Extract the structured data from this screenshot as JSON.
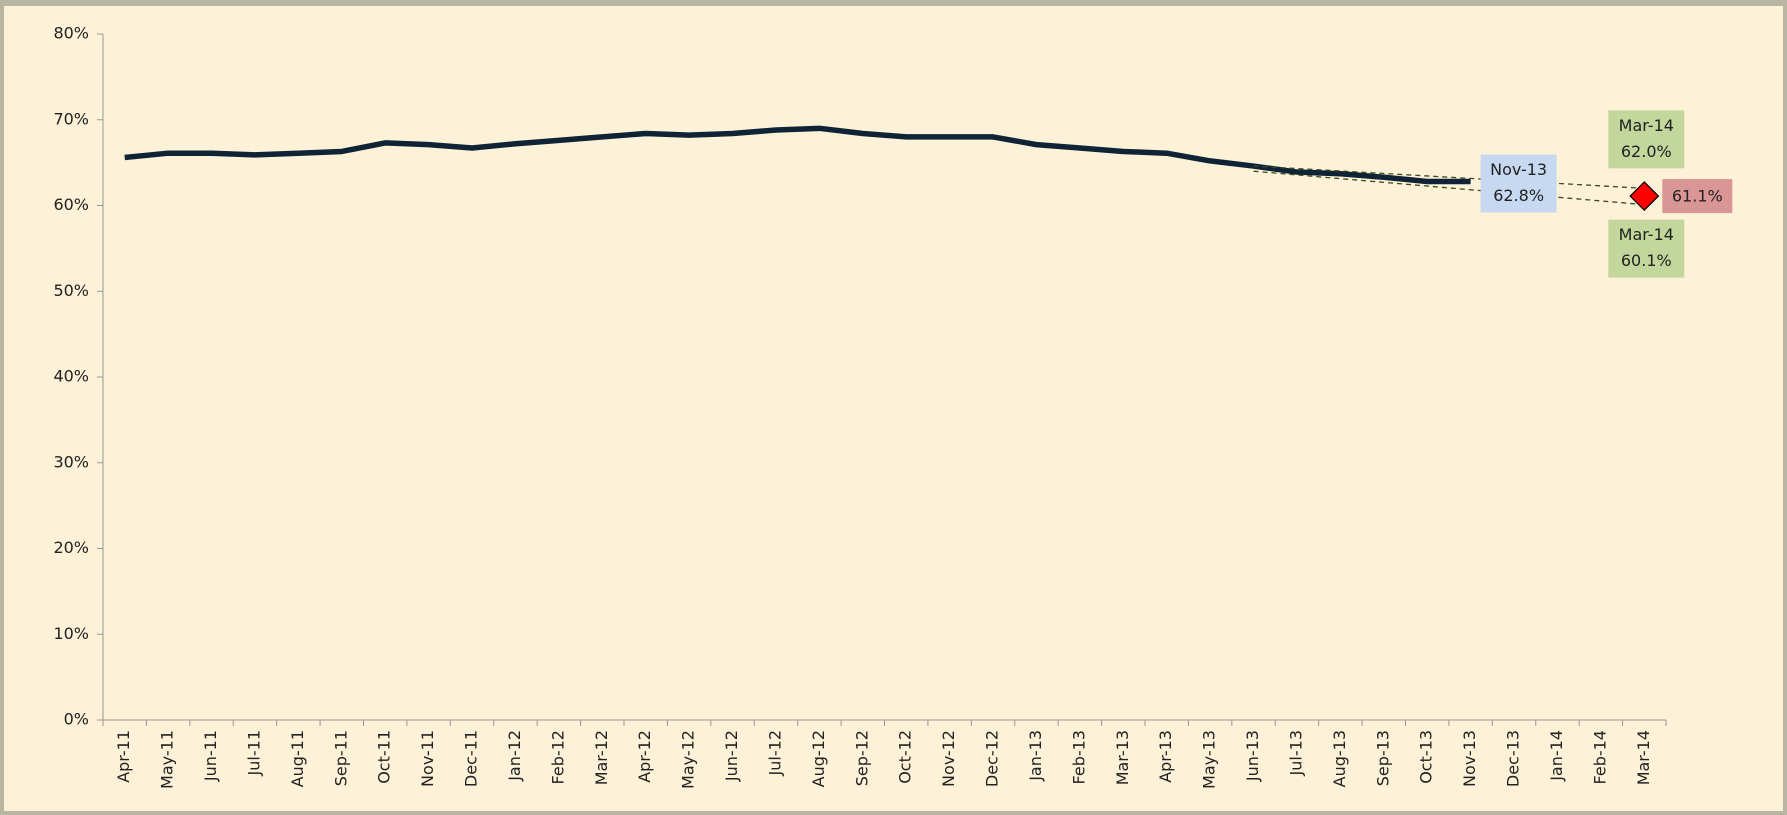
{
  "chart_data": {
    "type": "line",
    "categories": [
      "Apr-11",
      "May-11",
      "Jun-11",
      "Jul-11",
      "Aug-11",
      "Sep-11",
      "Oct-11",
      "Nov-11",
      "Dec-11",
      "Jan-12",
      "Feb-12",
      "Mar-12",
      "Apr-12",
      "May-12",
      "Jun-12",
      "Jul-12",
      "Aug-12",
      "Sep-12",
      "Oct-12",
      "Nov-12",
      "Dec-12",
      "Jan-13",
      "Feb-13",
      "Mar-13",
      "Apr-13",
      "May-13",
      "Jun-13",
      "Jul-13",
      "Aug-13",
      "Sep-13",
      "Oct-13",
      "Nov-13",
      "Dec-13",
      "Jan-14",
      "Feb-14",
      "Mar-14"
    ],
    "series": [
      {
        "color": "#0f2336",
        "values": [
          65.6,
          66.1,
          66.1,
          65.9,
          66.1,
          66.3,
          67.3,
          67.1,
          66.7,
          67.2,
          67.6,
          68.0,
          68.4,
          68.2,
          68.4,
          68.8,
          69.0,
          68.4,
          68.0,
          68.0,
          68.0,
          67.1,
          66.7,
          66.3,
          66.1,
          65.2,
          64.6,
          63.9,
          63.7,
          63.3,
          62.8,
          62.8,
          null,
          null,
          null,
          null
        ]
      }
    ],
    "trend_lines": [
      {
        "x": [
          "Jun-13",
          "Mar-14"
        ],
        "values": [
          64.6,
          62.0
        ],
        "color": "#3a4a1a"
      },
      {
        "x": [
          "Jun-13",
          "Mar-14"
        ],
        "values": [
          64.0,
          60.1
        ],
        "color": "#3a4a1a"
      }
    ],
    "callouts": [
      {
        "label": "Nov-13",
        "value": 62.8,
        "value_label": "62.8%",
        "color": "#c6d9f1",
        "placement": "right"
      },
      {
        "label": "Mar-14",
        "value": 62.0,
        "value_label": "62.0%",
        "color": "#c3d69b",
        "placement": "above"
      },
      {
        "label": "Mar-14",
        "value": 60.1,
        "value_label": "60.1%",
        "color": "#c3d69b",
        "placement": "below"
      }
    ],
    "marker": {
      "x": "Mar-14",
      "value": 61.1,
      "value_label": "61.1%",
      "color": "#ff0000",
      "label_color": "#d99694"
    },
    "ylim": [
      0,
      80
    ],
    "yticks": [
      {
        "value": 0,
        "label": "0%"
      },
      {
        "value": 10,
        "label": "10%"
      },
      {
        "value": 20,
        "label": "20%"
      },
      {
        "value": 30,
        "label": "30%"
      },
      {
        "value": 40,
        "label": "40%"
      },
      {
        "value": 50,
        "label": "50%"
      },
      {
        "value": 60,
        "label": "60%"
      },
      {
        "value": 70,
        "label": "70%"
      },
      {
        "value": 80,
        "label": "80%"
      }
    ]
  }
}
